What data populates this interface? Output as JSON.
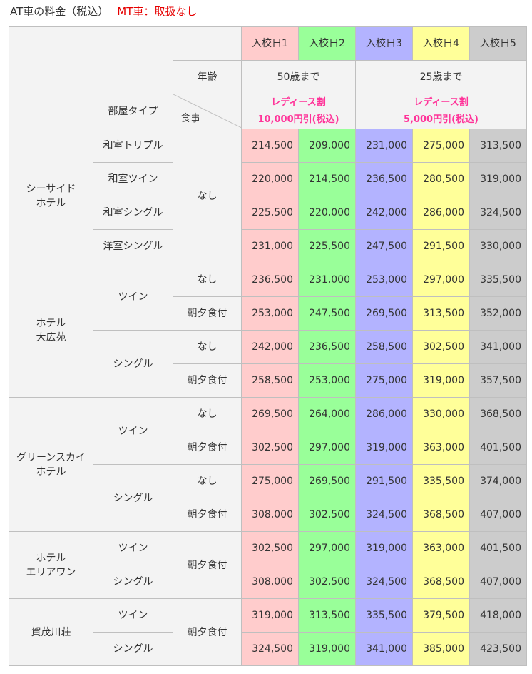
{
  "title": {
    "at_label": "AT車の料金（税込）",
    "mt_label": "MT車：取扱なし"
  },
  "header": {
    "entries": [
      "入校日1",
      "入校日2",
      "入校日3",
      "入校日4",
      "入校日5"
    ],
    "age_label": "年齢",
    "age_groups": [
      "50歳まで",
      "25歳まで"
    ],
    "room_type_label": "部屋タイプ",
    "meal_label": "食事",
    "ladies": [
      {
        "line1": "レディース割",
        "line2": "10,000円引(税込)"
      },
      {
        "line1": "レディース割",
        "line2": "5,000円引(税込)"
      }
    ]
  },
  "colors": {
    "entry1": "#ffcccc",
    "entry2": "#99ff99",
    "entry3": "#b3b3ff",
    "entry4": "#ffff99",
    "entry5": "#cccccc",
    "ladies": "#ff3399",
    "mt": "#e60000"
  },
  "hotels": [
    {
      "name_lines": [
        "シーサイド",
        "ホテル"
      ],
      "rooms": [
        "和室トリプル",
        "和室ツイン",
        "和室シングル",
        "洋室シングル"
      ],
      "meal": "なし",
      "prices": [
        [
          "214,500",
          "209,000",
          "231,000",
          "275,000",
          "313,500"
        ],
        [
          "220,000",
          "214,500",
          "236,500",
          "280,500",
          "319,000"
        ],
        [
          "225,500",
          "220,000",
          "242,000",
          "286,000",
          "324,500"
        ],
        [
          "231,000",
          "225,500",
          "247,500",
          "291,500",
          "330,000"
        ]
      ]
    },
    {
      "name_lines": [
        "ホテル",
        "大広苑"
      ],
      "rooms": [
        "ツイン",
        "シングル"
      ],
      "meals": [
        "なし",
        "朝夕食付",
        "なし",
        "朝夕食付"
      ],
      "prices": [
        [
          "236,500",
          "231,000",
          "253,000",
          "297,000",
          "335,500"
        ],
        [
          "253,000",
          "247,500",
          "269,500",
          "313,500",
          "352,000"
        ],
        [
          "242,000",
          "236,500",
          "258,500",
          "302,500",
          "341,000"
        ],
        [
          "258,500",
          "253,000",
          "275,000",
          "319,000",
          "357,500"
        ]
      ]
    },
    {
      "name_lines": [
        "グリーンスカイ",
        "ホテル"
      ],
      "rooms": [
        "ツイン",
        "シングル"
      ],
      "meals": [
        "なし",
        "朝夕食付",
        "なし",
        "朝夕食付"
      ],
      "prices": [
        [
          "269,500",
          "264,000",
          "286,000",
          "330,000",
          "368,500"
        ],
        [
          "302,500",
          "297,000",
          "319,000",
          "363,000",
          "401,500"
        ],
        [
          "275,000",
          "269,500",
          "291,500",
          "335,500",
          "374,000"
        ],
        [
          "308,000",
          "302,500",
          "324,500",
          "368,500",
          "407,000"
        ]
      ]
    },
    {
      "name_lines": [
        "ホテル",
        "エリアワン"
      ],
      "rooms": [
        "ツイン",
        "シングル"
      ],
      "meal": "朝夕食付",
      "prices": [
        [
          "302,500",
          "297,000",
          "319,000",
          "363,000",
          "401,500"
        ],
        [
          "308,000",
          "302,500",
          "324,500",
          "368,500",
          "407,000"
        ]
      ]
    },
    {
      "name_lines": [
        "賀茂川荘"
      ],
      "rooms": [
        "ツイン",
        "シングル"
      ],
      "meal": "朝夕食付",
      "prices": [
        [
          "319,000",
          "313,500",
          "335,500",
          "379,500",
          "418,000"
        ],
        [
          "324,500",
          "319,000",
          "341,000",
          "385,000",
          "423,500"
        ]
      ]
    }
  ]
}
